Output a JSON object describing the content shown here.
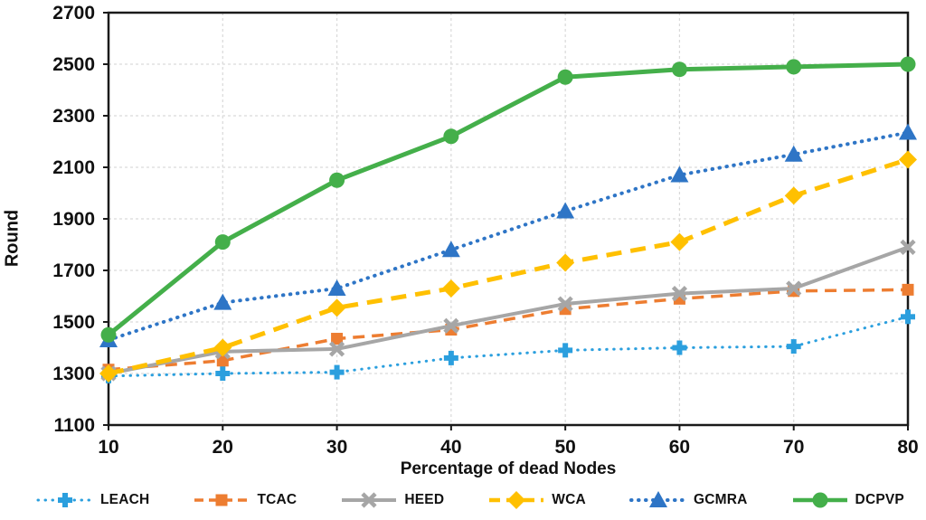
{
  "chart_data": {
    "type": "line",
    "title": "",
    "xlabel": "Percentage of dead Nodes",
    "ylabel": "Round",
    "x": [
      10,
      20,
      30,
      40,
      50,
      60,
      70,
      80
    ],
    "xticks": [
      10,
      20,
      30,
      40,
      50,
      60,
      70,
      80
    ],
    "yticks": [
      1100,
      1300,
      1500,
      1700,
      1900,
      2100,
      2300,
      2500,
      2700
    ],
    "ylim": [
      1100,
      2700
    ],
    "grid": true,
    "legend_position": "bottom",
    "colors": {
      "axis": "#1a1a1a",
      "gridline": "#d9d9d9",
      "text": "#111111"
    },
    "series": [
      {
        "name": "LEACH",
        "color": "#2B9FDE",
        "line": "dotted",
        "line_width": 3,
        "marker": "plus",
        "values": [
          1290,
          1300,
          1305,
          1360,
          1390,
          1400,
          1405,
          1520
        ]
      },
      {
        "name": "TCAC",
        "color": "#ED7D31",
        "line": "dashed",
        "line_width": 3.5,
        "marker": "square",
        "values": [
          1315,
          1350,
          1435,
          1470,
          1550,
          1590,
          1620,
          1625
        ]
      },
      {
        "name": "HEED",
        "color": "#A6A6A6",
        "line": "solid",
        "line_width": 4,
        "marker": "x",
        "values": [
          1300,
          1385,
          1395,
          1485,
          1570,
          1610,
          1630,
          1790
        ]
      },
      {
        "name": "WCA",
        "color": "#FFC000",
        "line": "dashed-long",
        "line_width": 5,
        "marker": "diamond",
        "values": [
          1300,
          1400,
          1555,
          1630,
          1730,
          1810,
          1990,
          2130
        ]
      },
      {
        "name": "GCMRA",
        "color": "#2E75C6",
        "line": "dotted",
        "line_width": 4,
        "marker": "triangle",
        "values": [
          1430,
          1575,
          1630,
          1780,
          1930,
          2070,
          2150,
          2235
        ]
      },
      {
        "name": "DCPVP",
        "color": "#44AF4A",
        "line": "solid",
        "line_width": 5,
        "marker": "circle",
        "values": [
          1450,
          1810,
          2050,
          2220,
          2450,
          2480,
          2490,
          2500
        ]
      }
    ]
  }
}
